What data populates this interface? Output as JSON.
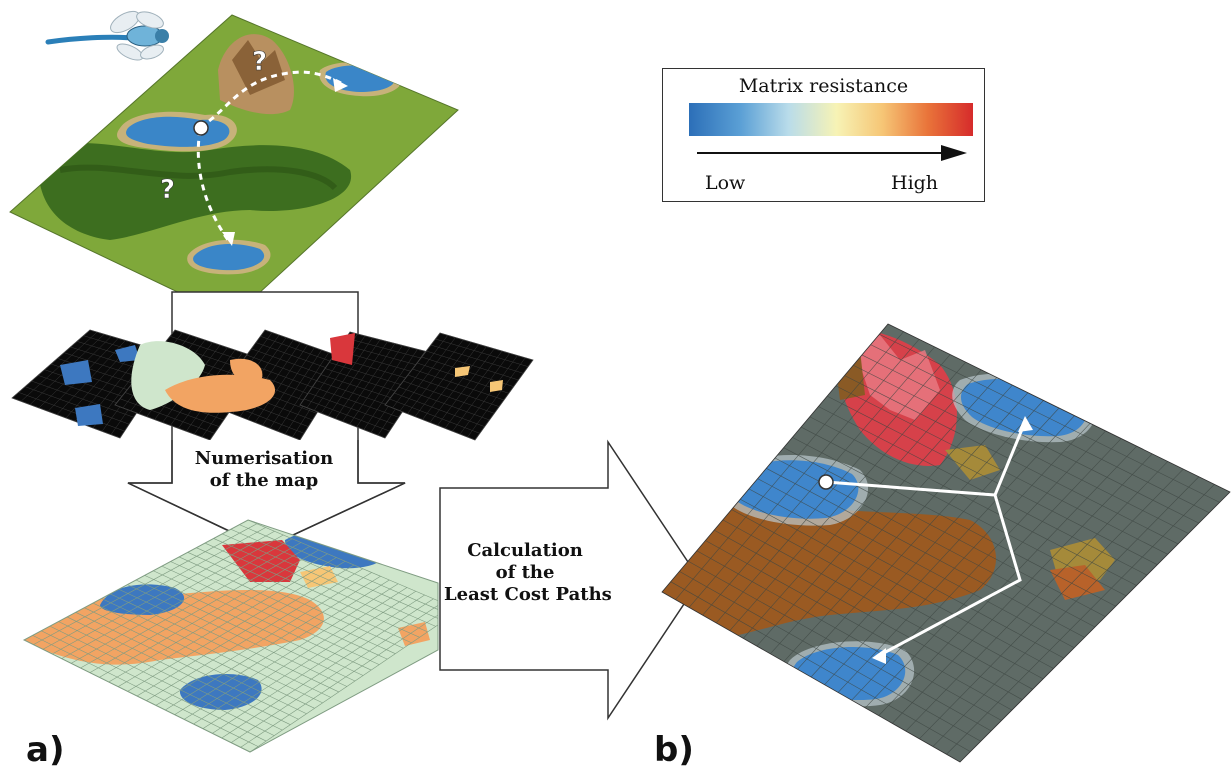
{
  "legend": {
    "title": "Matrix resistance",
    "low_label": "Low",
    "high_label": "High",
    "gradient_colors": [
      "#2c6fb8",
      "#5a9fd5",
      "#b9dcea",
      "#f7f3b5",
      "#f6c676",
      "#e9743a",
      "#d62b2b"
    ]
  },
  "steps": {
    "numerisation": "Numerisation\nof the map",
    "calculation": "Calculation\nof the\nLeast Cost Paths"
  },
  "panels": {
    "a_label": "a)",
    "b_label": "b)"
  },
  "map": {
    "question_mark": "?"
  },
  "colors": {
    "grass": "#7fa83a",
    "forest": "#3d6e1f",
    "water": "#3a86c8",
    "mountain": "#b89060",
    "class_water": "#3d78c0",
    "class_forest": "#f2a463",
    "class_meadow": "#cfe6cc",
    "class_rock": "#d9373c",
    "class_black": "#0a0a0a",
    "cost_base": "#5f6b66",
    "cost_brown": "#9a5a22"
  }
}
